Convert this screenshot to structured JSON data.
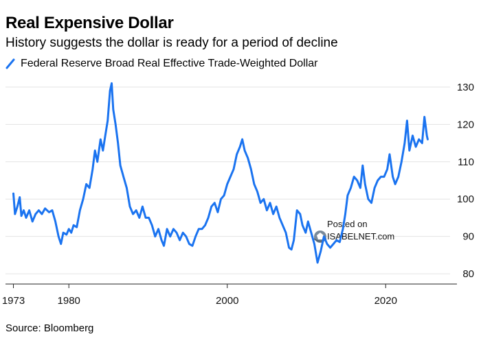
{
  "chart_data": {
    "type": "line",
    "title": "Real Expensive Dollar",
    "subtitle": "History suggests the dollar is ready for a period of decline",
    "source": "Source: Bloomberg",
    "xlabel": "",
    "ylabel": "",
    "xlim": [
      1972,
      2029
    ],
    "ylim": [
      78,
      132
    ],
    "yticks": [
      80,
      90,
      100,
      110,
      120,
      130
    ],
    "xticks": [
      1973,
      1980,
      2000,
      2020
    ],
    "y_axis_position": "right",
    "grid": "horizontal",
    "series": [
      {
        "name": "Federal Reserve Broad Real Effective Trade-Weighted Dollar",
        "color": "#1a73f0",
        "points": [
          [
            1973.0,
            101.5
          ],
          [
            1973.2,
            96
          ],
          [
            1973.5,
            98
          ],
          [
            1973.8,
            100.5
          ],
          [
            1974.0,
            95.5
          ],
          [
            1974.3,
            97
          ],
          [
            1974.6,
            95
          ],
          [
            1975.0,
            97
          ],
          [
            1975.4,
            94
          ],
          [
            1975.8,
            96
          ],
          [
            1976.2,
            97
          ],
          [
            1976.6,
            96
          ],
          [
            1977.0,
            97.5
          ],
          [
            1977.5,
            96.5
          ],
          [
            1977.9,
            97
          ],
          [
            1978.3,
            94
          ],
          [
            1978.7,
            90
          ],
          [
            1979.0,
            88
          ],
          [
            1979.3,
            91
          ],
          [
            1979.7,
            90.5
          ],
          [
            1980.0,
            92
          ],
          [
            1980.3,
            91
          ],
          [
            1980.6,
            93
          ],
          [
            1981.0,
            92.5
          ],
          [
            1981.4,
            97
          ],
          [
            1981.8,
            100
          ],
          [
            1982.2,
            104
          ],
          [
            1982.6,
            103
          ],
          [
            1983.0,
            108
          ],
          [
            1983.3,
            113
          ],
          [
            1983.6,
            110
          ],
          [
            1984.0,
            116
          ],
          [
            1984.3,
            113
          ],
          [
            1984.6,
            117
          ],
          [
            1984.9,
            121
          ],
          [
            1985.2,
            129
          ],
          [
            1985.4,
            131
          ],
          [
            1985.6,
            124
          ],
          [
            1985.9,
            120
          ],
          [
            1986.2,
            115
          ],
          [
            1986.5,
            109
          ],
          [
            1986.9,
            106
          ],
          [
            1987.3,
            103
          ],
          [
            1987.7,
            98
          ],
          [
            1988.1,
            96
          ],
          [
            1988.5,
            97
          ],
          [
            1988.9,
            95
          ],
          [
            1989.3,
            98
          ],
          [
            1989.7,
            95
          ],
          [
            1990.1,
            95
          ],
          [
            1990.5,
            93
          ],
          [
            1990.9,
            90
          ],
          [
            1991.3,
            92
          ],
          [
            1991.7,
            89
          ],
          [
            1992.0,
            87.5
          ],
          [
            1992.4,
            92
          ],
          [
            1992.8,
            90
          ],
          [
            1993.2,
            92
          ],
          [
            1993.6,
            91
          ],
          [
            1994.0,
            89
          ],
          [
            1994.4,
            91
          ],
          [
            1994.8,
            90
          ],
          [
            1995.2,
            88
          ],
          [
            1995.6,
            87.5
          ],
          [
            1996.0,
            90
          ],
          [
            1996.4,
            92
          ],
          [
            1996.8,
            92
          ],
          [
            1997.2,
            93
          ],
          [
            1997.6,
            95
          ],
          [
            1998.0,
            98
          ],
          [
            1998.4,
            99
          ],
          [
            1998.8,
            96.5
          ],
          [
            1999.2,
            100
          ],
          [
            1999.6,
            101
          ],
          [
            2000.0,
            104
          ],
          [
            2000.4,
            106
          ],
          [
            2000.8,
            108
          ],
          [
            2001.2,
            112
          ],
          [
            2001.6,
            114
          ],
          [
            2001.9,
            116
          ],
          [
            2002.2,
            113
          ],
          [
            2002.6,
            111
          ],
          [
            2003.0,
            108
          ],
          [
            2003.4,
            104
          ],
          [
            2003.8,
            102
          ],
          [
            2004.2,
            99
          ],
          [
            2004.6,
            100
          ],
          [
            2005.0,
            97
          ],
          [
            2005.4,
            99
          ],
          [
            2005.8,
            96
          ],
          [
            2006.2,
            98
          ],
          [
            2006.6,
            95
          ],
          [
            2007.0,
            93
          ],
          [
            2007.4,
            91
          ],
          [
            2007.8,
            87
          ],
          [
            2008.1,
            86.5
          ],
          [
            2008.4,
            89
          ],
          [
            2008.8,
            97
          ],
          [
            2009.2,
            96
          ],
          [
            2009.5,
            93
          ],
          [
            2009.9,
            91
          ],
          [
            2010.2,
            94
          ],
          [
            2010.6,
            91
          ],
          [
            2011.0,
            88
          ],
          [
            2011.4,
            83
          ],
          [
            2011.8,
            86
          ],
          [
            2012.2,
            90
          ],
          [
            2012.6,
            88
          ],
          [
            2013.0,
            87
          ],
          [
            2013.4,
            88
          ],
          [
            2013.8,
            89
          ],
          [
            2014.2,
            88.5
          ],
          [
            2014.6,
            92
          ],
          [
            2014.9,
            96
          ],
          [
            2015.2,
            101
          ],
          [
            2015.6,
            103
          ],
          [
            2016.0,
            106
          ],
          [
            2016.4,
            105
          ],
          [
            2016.8,
            103
          ],
          [
            2017.1,
            109
          ],
          [
            2017.4,
            104
          ],
          [
            2017.8,
            100
          ],
          [
            2018.2,
            99
          ],
          [
            2018.6,
            103
          ],
          [
            2019.0,
            105
          ],
          [
            2019.4,
            106
          ],
          [
            2019.8,
            106
          ],
          [
            2020.2,
            108
          ],
          [
            2020.5,
            112
          ],
          [
            2020.9,
            106
          ],
          [
            2021.2,
            104
          ],
          [
            2021.6,
            106
          ],
          [
            2022.0,
            110
          ],
          [
            2022.4,
            115
          ],
          [
            2022.7,
            121
          ],
          [
            2023.0,
            113
          ],
          [
            2023.4,
            117
          ],
          [
            2023.8,
            114
          ],
          [
            2024.2,
            116
          ],
          [
            2024.6,
            115
          ],
          [
            2024.9,
            122
          ],
          [
            2025.2,
            117
          ],
          [
            2025.3,
            116
          ]
        ]
      }
    ]
  },
  "watermark": {
    "line1": "Posted on",
    "line2": "ISABELNET.com"
  }
}
